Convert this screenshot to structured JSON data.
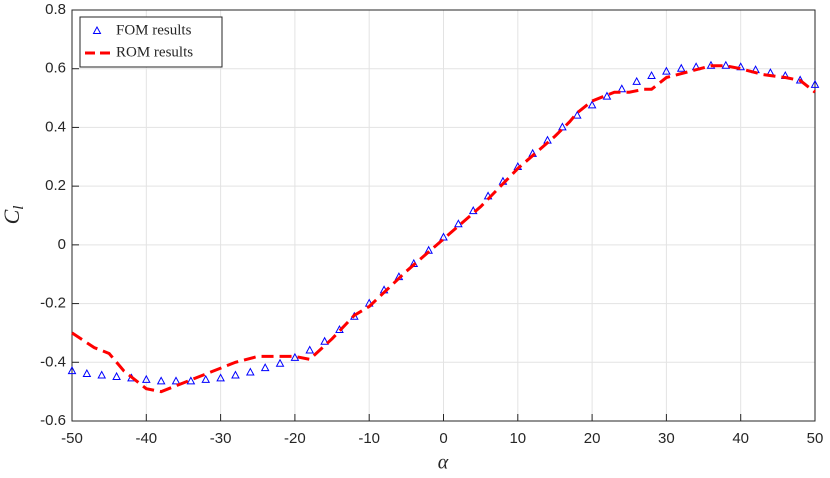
{
  "chart_data": {
    "type": "line",
    "xlabel": "α",
    "ylabel": [
      "C",
      "l"
    ],
    "xlim": [
      -50,
      50
    ],
    "ylim": [
      -0.6,
      0.8
    ],
    "xticks": [
      -50,
      -40,
      -30,
      -20,
      -10,
      0,
      10,
      20,
      30,
      40,
      50
    ],
    "yticks": [
      -0.6,
      -0.4,
      -0.2,
      0,
      0.2,
      0.4,
      0.6,
      0.8
    ],
    "grid": true,
    "legend": "upper-left",
    "series": [
      {
        "name": "FOM results",
        "color": "#0000ff",
        "marker": "triangle",
        "x": [
          -50,
          -48,
          -46,
          -44,
          -42,
          -40,
          -38,
          -36,
          -34,
          -32,
          -30,
          -28,
          -26,
          -24,
          -22,
          -20,
          -18,
          -16,
          -14,
          -12,
          -10,
          -8,
          -6,
          -4,
          -2,
          0,
          2,
          4,
          6,
          8,
          10,
          12,
          14,
          16,
          18,
          20,
          22,
          24,
          26,
          28,
          30,
          32,
          34,
          36,
          38,
          40,
          42,
          44,
          46,
          48,
          50
        ],
        "values": [
          -0.43,
          -0.44,
          -0.445,
          -0.45,
          -0.455,
          -0.46,
          -0.465,
          -0.465,
          -0.465,
          -0.46,
          -0.455,
          -0.445,
          -0.435,
          -0.42,
          -0.405,
          -0.385,
          -0.36,
          -0.33,
          -0.29,
          -0.245,
          -0.2,
          -0.155,
          -0.11,
          -0.065,
          -0.02,
          0.025,
          0.07,
          0.115,
          0.165,
          0.215,
          0.265,
          0.31,
          0.355,
          0.4,
          0.44,
          0.475,
          0.505,
          0.53,
          0.555,
          0.575,
          0.59,
          0.6,
          0.605,
          0.61,
          0.61,
          0.605,
          0.595,
          0.585,
          0.575,
          0.56,
          0.545
        ]
      },
      {
        "name": "ROM results",
        "color": "#ff0000",
        "marker": "dashed",
        "x": [
          -50,
          -47,
          -45,
          -43,
          -40,
          -38,
          -35,
          -32,
          -28,
          -25,
          -22,
          -20,
          -18,
          -15,
          -12,
          -10,
          -5,
          0,
          5,
          10,
          15,
          17,
          18,
          20,
          23,
          25,
          27,
          28,
          30,
          33,
          36,
          38,
          40,
          43,
          46,
          48,
          50
        ],
        "values": [
          -0.3,
          -0.35,
          -0.37,
          -0.43,
          -0.49,
          -0.5,
          -0.47,
          -0.44,
          -0.4,
          -0.38,
          -0.38,
          -0.38,
          -0.39,
          -0.32,
          -0.24,
          -0.21,
          -0.09,
          0.02,
          0.13,
          0.26,
          0.37,
          0.42,
          0.45,
          0.49,
          0.52,
          0.52,
          0.53,
          0.53,
          0.57,
          0.59,
          0.61,
          0.61,
          0.6,
          0.58,
          0.57,
          0.56,
          0.52
        ]
      }
    ]
  }
}
